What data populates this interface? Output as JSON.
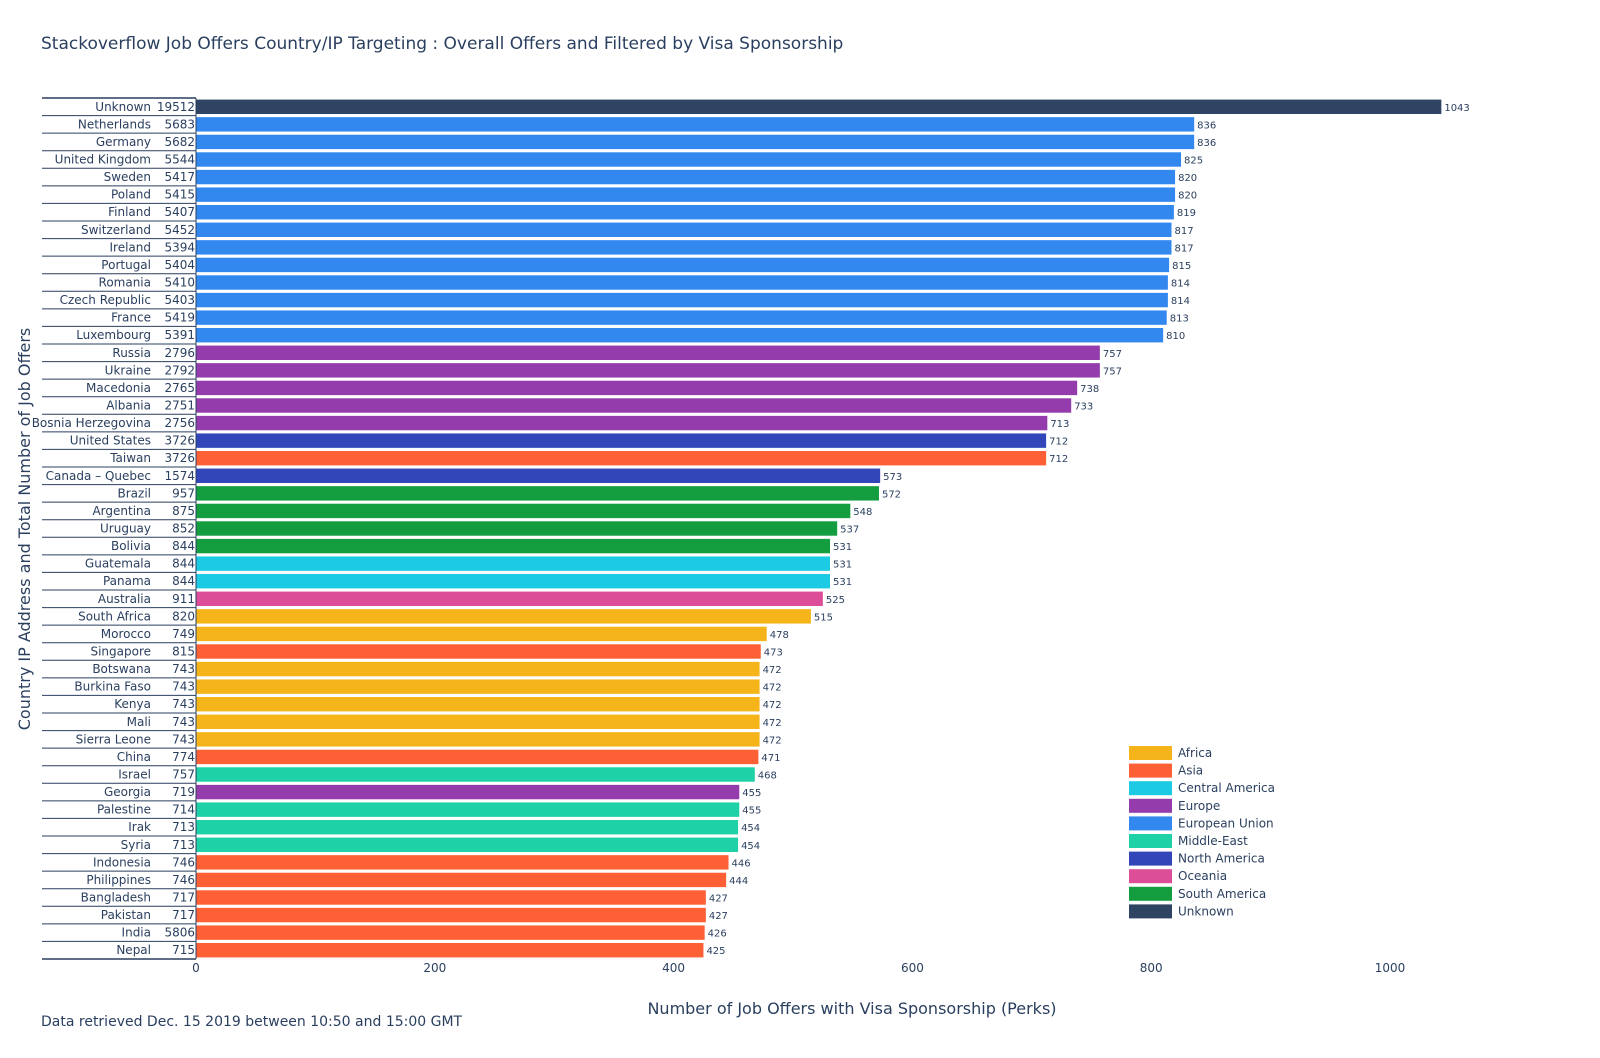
{
  "title": "Stackoverflow Job Offers Country/IP Targeting : Overall Offers and Filtered by Visa Sponsorship",
  "footnote": "Data retrieved Dec. 15 2019 between 10:50 and 15:00 GMT",
  "chart_data": {
    "type": "bar",
    "orientation": "horizontal",
    "title": "Stackoverflow Job Offers Country/IP Targeting : Overall Offers and Filtered by Visa Sponsorship",
    "xlabel": "Number of Job Offers with Visa Sponsorship (Perks)",
    "ylabel": "Country IP Address and Total Number of Job Offers",
    "xlim": [
      0,
      1090
    ],
    "xticks": [
      0,
      200,
      400,
      600,
      800,
      1000
    ],
    "grid": false,
    "legend_position": "bottom-right",
    "regions": [
      {
        "name": "Africa",
        "color": "#f4b41a"
      },
      {
        "name": "Asia",
        "color": "#fe6035"
      },
      {
        "name": "Central America",
        "color": "#1ccbe3"
      },
      {
        "name": "Europe",
        "color": "#943cab"
      },
      {
        "name": "European Union",
        "color": "#3388f0"
      },
      {
        "name": "Middle-East",
        "color": "#1fd1a6"
      },
      {
        "name": "North America",
        "color": "#3245b9"
      },
      {
        "name": "Oceania",
        "color": "#dc4e98"
      },
      {
        "name": "South America",
        "color": "#139d3f"
      },
      {
        "name": "Unknown",
        "color": "#2e4462"
      }
    ],
    "rows": [
      {
        "country": "Unknown",
        "total": "19512",
        "value": 1043,
        "region": "Unknown"
      },
      {
        "country": "Netherlands",
        "total": "5683",
        "value": 836,
        "region": "European Union"
      },
      {
        "country": "Germany",
        "total": "5682",
        "value": 836,
        "region": "European Union"
      },
      {
        "country": "United Kingdom",
        "total": "5544",
        "value": 825,
        "region": "European Union"
      },
      {
        "country": "Sweden",
        "total": "5417",
        "value": 820,
        "region": "European Union"
      },
      {
        "country": "Poland",
        "total": "5415",
        "value": 820,
        "region": "European Union"
      },
      {
        "country": "Finland",
        "total": "5407",
        "value": 819,
        "region": "European Union"
      },
      {
        "country": "Switzerland",
        "total": "5452",
        "value": 817,
        "region": "European Union"
      },
      {
        "country": "Ireland",
        "total": "5394",
        "value": 817,
        "region": "European Union"
      },
      {
        "country": "Portugal",
        "total": "5404",
        "value": 815,
        "region": "European Union"
      },
      {
        "country": "Romania",
        "total": "5410",
        "value": 814,
        "region": "European Union"
      },
      {
        "country": "Czech Republic",
        "total": "5403",
        "value": 814,
        "region": "European Union"
      },
      {
        "country": "France",
        "total": "5419",
        "value": 813,
        "region": "European Union"
      },
      {
        "country": "Luxembourg",
        "total": "5391",
        "value": 810,
        "region": "European Union"
      },
      {
        "country": "Russia",
        "total": "2796",
        "value": 757,
        "region": "Europe"
      },
      {
        "country": "Ukraine",
        "total": "2792",
        "value": 757,
        "region": "Europe"
      },
      {
        "country": "Macedonia",
        "total": "2765",
        "value": 738,
        "region": "Europe"
      },
      {
        "country": "Albania",
        "total": "2751",
        "value": 733,
        "region": "Europe"
      },
      {
        "country": "Bosnia Herzegovina",
        "total": "2756",
        "value": 713,
        "region": "Europe"
      },
      {
        "country": "United States",
        "total": "3726",
        "value": 712,
        "region": "North America"
      },
      {
        "country": "Taiwan",
        "total": "3726",
        "value": 712,
        "region": "Asia"
      },
      {
        "country": "Canada – Quebec",
        "total": "1574",
        "value": 573,
        "region": "North America"
      },
      {
        "country": "Brazil",
        "total": "957",
        "value": 572,
        "region": "South America"
      },
      {
        "country": "Argentina",
        "total": "875",
        "value": 548,
        "region": "South America"
      },
      {
        "country": "Uruguay",
        "total": "852",
        "value": 537,
        "region": "South America"
      },
      {
        "country": "Bolivia",
        "total": "844",
        "value": 531,
        "region": "South America"
      },
      {
        "country": "Guatemala",
        "total": "844",
        "value": 531,
        "region": "Central America"
      },
      {
        "country": "Panama",
        "total": "844",
        "value": 531,
        "region": "Central America"
      },
      {
        "country": "Australia",
        "total": "911",
        "value": 525,
        "region": "Oceania"
      },
      {
        "country": "South Africa",
        "total": "820",
        "value": 515,
        "region": "Africa"
      },
      {
        "country": "Morocco",
        "total": "749",
        "value": 478,
        "region": "Africa"
      },
      {
        "country": "Singapore",
        "total": "815",
        "value": 473,
        "region": "Asia"
      },
      {
        "country": "Botswana",
        "total": "743",
        "value": 472,
        "region": "Africa"
      },
      {
        "country": "Burkina Faso",
        "total": "743",
        "value": 472,
        "region": "Africa"
      },
      {
        "country": "Kenya",
        "total": "743",
        "value": 472,
        "region": "Africa"
      },
      {
        "country": "Mali",
        "total": "743",
        "value": 472,
        "region": "Africa"
      },
      {
        "country": "Sierra Leone",
        "total": "743",
        "value": 472,
        "region": "Africa"
      },
      {
        "country": "China",
        "total": "774",
        "value": 471,
        "region": "Asia"
      },
      {
        "country": "Israel",
        "total": "757",
        "value": 468,
        "region": "Middle-East"
      },
      {
        "country": "Georgia",
        "total": "719",
        "value": 455,
        "region": "Europe"
      },
      {
        "country": "Palestine",
        "total": "714",
        "value": 455,
        "region": "Middle-East"
      },
      {
        "country": "Irak",
        "total": "713",
        "value": 454,
        "region": "Middle-East"
      },
      {
        "country": "Syria",
        "total": "713",
        "value": 454,
        "region": "Middle-East"
      },
      {
        "country": "Indonesia",
        "total": "746",
        "value": 446,
        "region": "Asia"
      },
      {
        "country": "Philippines",
        "total": "746",
        "value": 444,
        "region": "Asia"
      },
      {
        "country": "Bangladesh",
        "total": "717",
        "value": 427,
        "region": "Asia"
      },
      {
        "country": "Pakistan",
        "total": "717",
        "value": 427,
        "region": "Asia"
      },
      {
        "country": "India",
        "total": "5806",
        "value": 426,
        "region": "Asia"
      },
      {
        "country": "Nepal",
        "total": "715",
        "value": 425,
        "region": "Asia"
      }
    ]
  }
}
